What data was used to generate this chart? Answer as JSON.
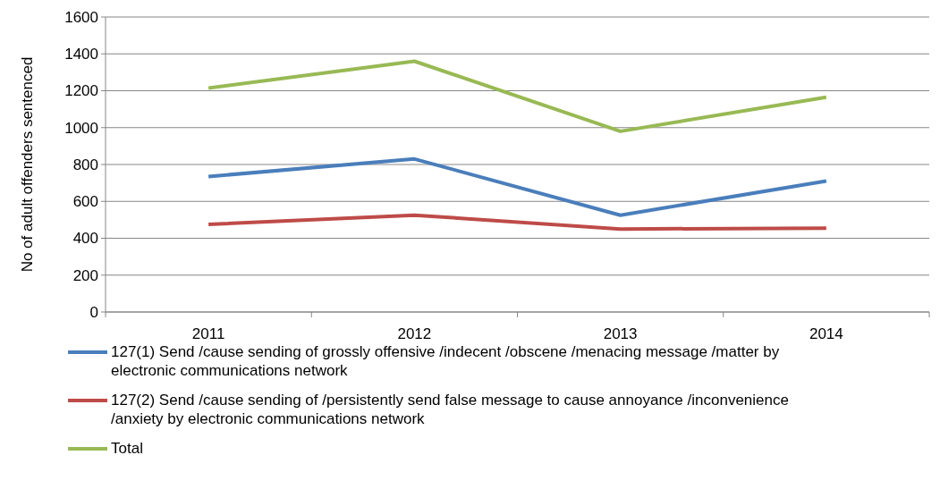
{
  "chart_data": {
    "type": "line",
    "ylabel": "No of adult offenders sentenced",
    "categories": [
      "2011",
      "2012",
      "2013",
      "2014"
    ],
    "series": [
      {
        "name": "127(1) Send /cause sending of grossly offensive /indecent /obscene /menacing message /matter by electronic communications network",
        "color": "#4a7ebb",
        "values": [
          735,
          830,
          525,
          710
        ]
      },
      {
        "name": "127(2) Send /cause sending of /persistently send false message to cause annoyance /inconvenience /anxiety by electronic communications network",
        "color": "#be4b48",
        "values": [
          475,
          525,
          450,
          455
        ]
      },
      {
        "name": "Total",
        "color": "#98b954",
        "values": [
          1215,
          1360,
          980,
          1165
        ]
      }
    ],
    "ylim": [
      0,
      1600
    ],
    "yticks": [
      0,
      200,
      400,
      600,
      800,
      1000,
      1200,
      1400,
      1600
    ],
    "grid": "y",
    "legend": "bottom",
    "marker": "none",
    "line_style": "solid"
  }
}
